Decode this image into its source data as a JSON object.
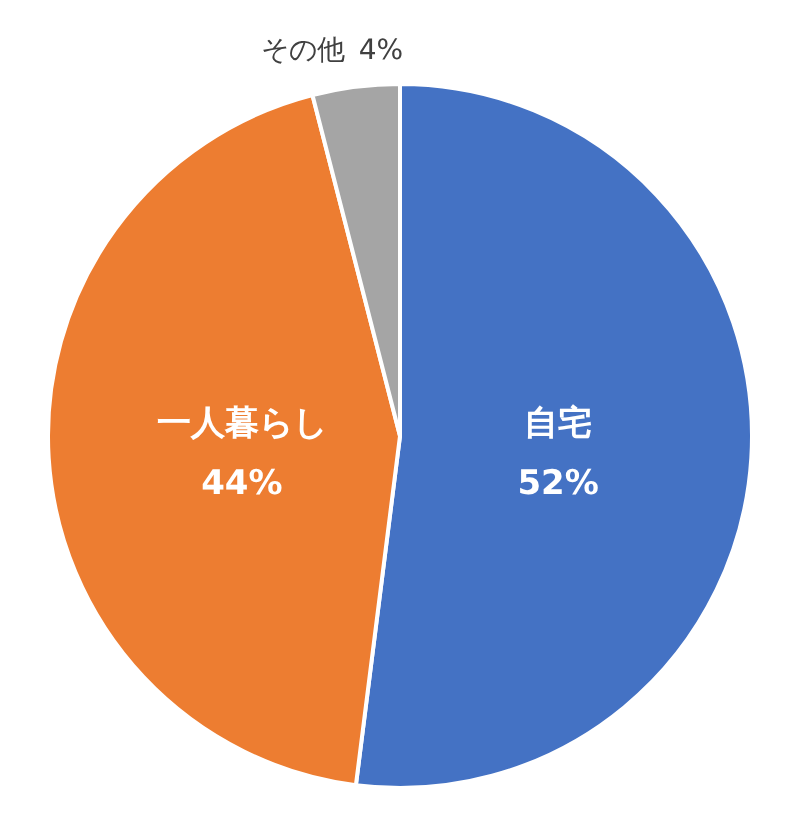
{
  "chart_data": {
    "type": "pie",
    "categories": [
      "自宅",
      "一人暮らし",
      "その他"
    ],
    "values": [
      52,
      44,
      4
    ],
    "value_labels": [
      "52%",
      "44%",
      "4%"
    ],
    "colors": [
      "#4472c4",
      "#ed7d31",
      "#a5a5a5"
    ]
  }
}
